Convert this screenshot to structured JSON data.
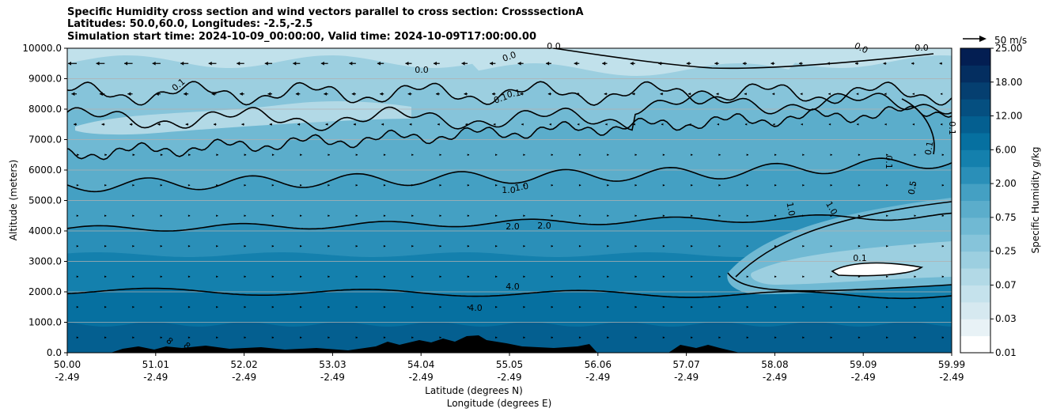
{
  "chart_data": {
    "type": "contourf",
    "title_lines": [
      "Specific Humidity cross section and wind vectors parallel to cross section: CrosssectionA",
      "Latitudes: 50.0,60.0, Longitudes: -2.5,-2.5",
      "Simulation start time: 2024-10-09_00:00:00, Valid time: 2024-10-09T17:00:00.00"
    ],
    "xlabel_lat": "Latitude (degrees N)",
    "xlabel_lon": "Longitude (degrees E)",
    "ylabel": "Altitude (meters)",
    "ylim": [
      0,
      10000
    ],
    "yticks": [
      0,
      1000,
      2000,
      3000,
      4000,
      5000,
      6000,
      7000,
      8000,
      9000,
      10000
    ],
    "ytick_labels": [
      "0.0",
      "1000.0",
      "2000.0",
      "3000.0",
      "4000.0",
      "5000.0",
      "6000.0",
      "7000.0",
      "8000.0",
      "9000.0",
      "10000.0"
    ],
    "xlim": [
      50.0,
      59.99
    ],
    "xticks_lat": [
      "50.00",
      "51.01",
      "52.02",
      "53.03",
      "54.04",
      "55.05",
      "56.06",
      "57.07",
      "58.08",
      "59.09",
      "59.99"
    ],
    "xticks_lon": [
      "-2.49",
      "-2.49",
      "-2.49",
      "-2.49",
      "-2.49",
      "-2.49",
      "-2.49",
      "-2.49",
      "-2.49",
      "-2.49",
      "-2.49"
    ],
    "colorbar": {
      "label": "Specific Humidity g/kg",
      "levels": [
        0.01,
        0.02,
        0.03,
        0.05,
        0.07,
        0.1,
        0.25,
        0.5,
        0.75,
        1.0,
        2.0,
        4.0,
        6.0,
        8.0,
        12.0,
        16.0,
        18.0,
        20.0,
        25.0
      ],
      "tick_labels": [
        "0.01",
        "0.03",
        "0.07",
        "0.25",
        "0.75",
        "2.00",
        "6.00",
        "12.00",
        "18.00",
        "25.00"
      ],
      "colors": [
        "#ffffff",
        "#e8f2f6",
        "#d6e9f0",
        "#c5e2ec",
        "#b2d9e6",
        "#9ccfe0",
        "#86c4da",
        "#70b9d3",
        "#5badcb",
        "#44a0c3",
        "#2a8fb8",
        "#1480ad",
        "#0670a0",
        "#045f90",
        "#054f80",
        "#053f70",
        "#042e60",
        "#031e52"
      ]
    },
    "quiver_key": {
      "label": "50 m/s",
      "speed": 50
    },
    "contour_labels": [
      "0.0",
      "0.0",
      "0.0",
      "0.0",
      "0.0",
      "0.1",
      "0.1",
      "0.1",
      "0.1",
      "0.1",
      "0.1",
      "0.5",
      "1.0",
      "1.0",
      "1.0",
      "1.0",
      "2.0",
      "2.0",
      "4.0",
      "4.0",
      "8",
      "8",
      "0.1"
    ],
    "wind_field_rows": [
      {
        "altitude": 9500,
        "speed": 20
      },
      {
        "altitude": 8500,
        "speed": 12
      },
      {
        "altitude": 7500,
        "speed": 7
      },
      {
        "altitude": 6500,
        "speed": 5
      },
      {
        "altitude": 5500,
        "speed": 4
      },
      {
        "altitude": 4500,
        "speed": 3
      },
      {
        "altitude": 3500,
        "speed": 2
      },
      {
        "altitude": 2500,
        "speed": 1.5
      },
      {
        "altitude": 1500,
        "speed": 3
      },
      {
        "altitude": 500,
        "speed": 3
      }
    ]
  }
}
